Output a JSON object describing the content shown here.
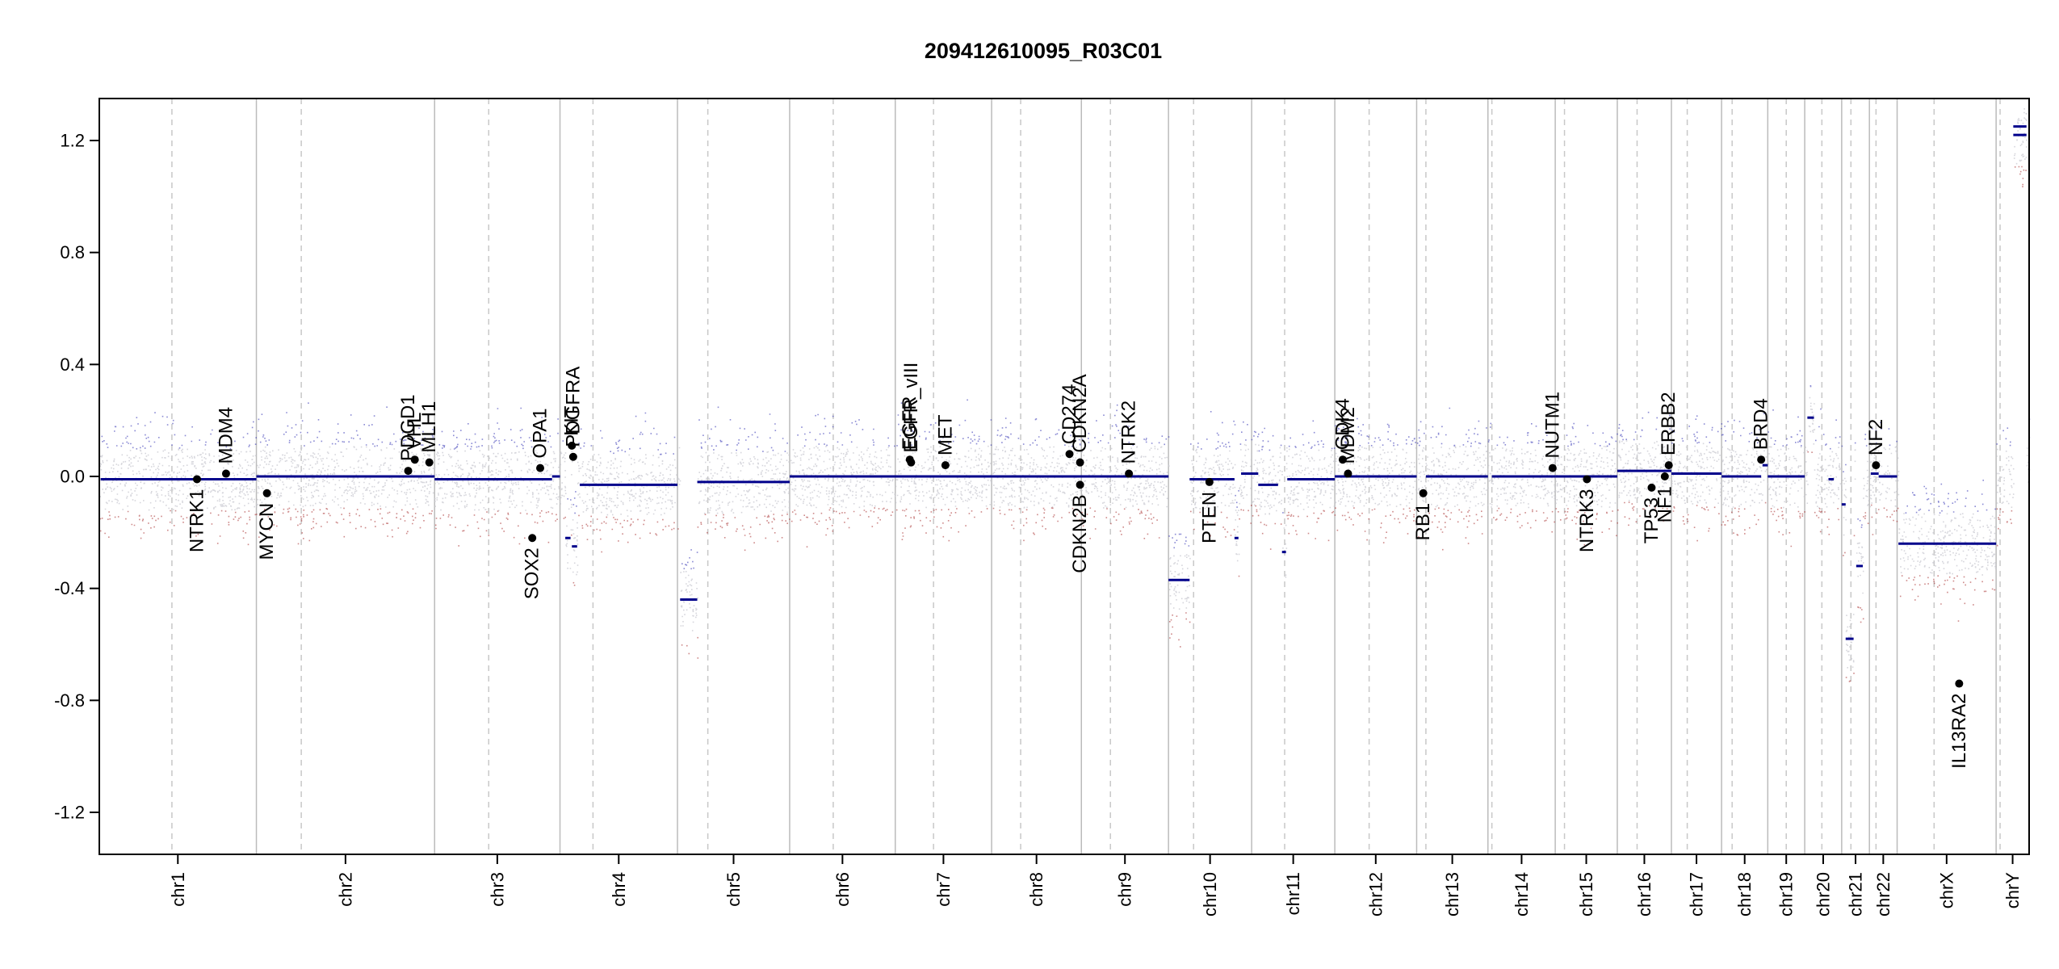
{
  "chart_data": {
    "type": "scatter",
    "title": "209412610095_R03C01",
    "xlabel": "",
    "ylabel": "",
    "ylim": [
      -1.35,
      1.35
    ],
    "yticks": [
      1.2,
      0.8,
      0.4,
      0.0,
      -0.4,
      -0.8,
      -1.2
    ],
    "ytick_labels": [
      "1.2",
      "0.8",
      "0.4",
      "0.0",
      "-0.4",
      "-0.8",
      "-1.2"
    ],
    "colors": {
      "axis": "#000000",
      "segment": "#00008b",
      "gain_point": "#2b2bb0",
      "loss_point": "#a52a2a",
      "neutral_point": "#c8c8d0",
      "chrom_boundary": "#bbbbbb",
      "centromere": "#c8c8c8",
      "gene_marker": "#000000"
    },
    "chromosomes": [
      {
        "name": "chr1",
        "start": 0.0,
        "end": 11.9,
        "centromere": 5.5
      },
      {
        "name": "chr2",
        "start": 11.9,
        "end": 25.4,
        "centromere": 15.3
      },
      {
        "name": "chr3",
        "start": 25.4,
        "end": 34.9,
        "centromere": 29.5
      },
      {
        "name": "chr4",
        "start": 34.9,
        "end": 43.8,
        "centromere": 37.4
      },
      {
        "name": "chr5",
        "start": 43.8,
        "end": 52.3,
        "centromere": 46.1
      },
      {
        "name": "chr6",
        "start": 52.3,
        "end": 60.3,
        "centromere": 55.6
      },
      {
        "name": "chr7",
        "start": 60.3,
        "end": 67.6,
        "centromere": 63.2
      },
      {
        "name": "chr8",
        "start": 67.6,
        "end": 74.4,
        "centromere": 69.8
      },
      {
        "name": "chr9",
        "start": 74.4,
        "end": 81.0,
        "centromere": 76.6
      },
      {
        "name": "chr10",
        "start": 81.0,
        "end": 87.3,
        "centromere": 82.9
      },
      {
        "name": "chr11",
        "start": 87.3,
        "end": 93.6,
        "centromere": 89.8
      },
      {
        "name": "chr12",
        "start": 93.6,
        "end": 99.8,
        "centromere": 96.2
      },
      {
        "name": "chr13",
        "start": 99.8,
        "end": 105.2,
        "centromere": 100.5
      },
      {
        "name": "chr14",
        "start": 105.2,
        "end": 110.3,
        "centromere": 105.5
      },
      {
        "name": "chr15",
        "start": 110.3,
        "end": 115.0,
        "centromere": 111.0
      },
      {
        "name": "chr16",
        "start": 115.0,
        "end": 119.1,
        "centromere": 116.5
      },
      {
        "name": "chr17",
        "start": 119.1,
        "end": 122.9,
        "centromere": 120.3
      },
      {
        "name": "chr18",
        "start": 122.9,
        "end": 126.4,
        "centromere": 123.7
      },
      {
        "name": "chr19",
        "start": 126.4,
        "end": 129.2,
        "centromere": 127.8
      },
      {
        "name": "chr20",
        "start": 129.2,
        "end": 132.0,
        "centromere": 130.5
      },
      {
        "name": "chr21",
        "start": 132.0,
        "end": 134.1,
        "centromere": 132.7
      },
      {
        "name": "chr22",
        "start": 134.1,
        "end": 136.2,
        "centromere": 134.6
      },
      {
        "name": "chrX",
        "start": 136.2,
        "end": 143.7,
        "centromere": 139.0
      },
      {
        "name": "chrY",
        "start": 143.7,
        "end": 146.2,
        "centromere": 144.0
      }
    ],
    "segments": [
      {
        "x0": 0.1,
        "x1": 11.9,
        "y": -0.01
      },
      {
        "x0": 11.9,
        "x1": 25.4,
        "y": 0.0
      },
      {
        "x0": 25.4,
        "x1": 34.3,
        "y": -0.01
      },
      {
        "x0": 34.3,
        "x1": 34.9,
        "y": 0.0
      },
      {
        "x0": 35.3,
        "x1": 35.7,
        "y": -0.22
      },
      {
        "x0": 35.8,
        "x1": 36.2,
        "y": -0.25
      },
      {
        "x0": 36.4,
        "x1": 43.8,
        "y": -0.03
      },
      {
        "x0": 44.0,
        "x1": 45.3,
        "y": -0.44
      },
      {
        "x0": 45.3,
        "x1": 52.3,
        "y": -0.02
      },
      {
        "x0": 52.3,
        "x1": 67.6,
        "y": 0.0
      },
      {
        "x0": 67.6,
        "x1": 81.0,
        "y": 0.0
      },
      {
        "x0": 81.0,
        "x1": 82.6,
        "y": -0.37
      },
      {
        "x0": 82.6,
        "x1": 86.0,
        "y": -0.01
      },
      {
        "x0": 86.0,
        "x1": 86.3,
        "y": -0.22
      },
      {
        "x0": 86.5,
        "x1": 87.8,
        "y": 0.01
      },
      {
        "x0": 87.8,
        "x1": 89.3,
        "y": -0.03
      },
      {
        "x0": 89.6,
        "x1": 89.9,
        "y": -0.27
      },
      {
        "x0": 90.0,
        "x1": 93.6,
        "y": -0.01
      },
      {
        "x0": 93.6,
        "x1": 99.8,
        "y": 0.0
      },
      {
        "x0": 100.5,
        "x1": 105.2,
        "y": 0.0
      },
      {
        "x0": 105.5,
        "x1": 110.3,
        "y": 0.0
      },
      {
        "x0": 110.3,
        "x1": 115.0,
        "y": 0.0
      },
      {
        "x0": 115.0,
        "x1": 119.1,
        "y": 0.02
      },
      {
        "x0": 119.1,
        "x1": 122.9,
        "y": 0.01
      },
      {
        "x0": 122.9,
        "x1": 125.9,
        "y": 0.0
      },
      {
        "x0": 126.0,
        "x1": 126.4,
        "y": 0.04
      },
      {
        "x0": 126.4,
        "x1": 129.2,
        "y": 0.0
      },
      {
        "x0": 129.4,
        "x1": 129.9,
        "y": 0.21
      },
      {
        "x0": 131.0,
        "x1": 131.4,
        "y": -0.01
      },
      {
        "x0": 132.0,
        "x1": 132.3,
        "y": -0.1
      },
      {
        "x0": 132.3,
        "x1": 132.9,
        "y": -0.58
      },
      {
        "x0": 133.1,
        "x1": 133.6,
        "y": -0.32
      },
      {
        "x0": 134.2,
        "x1": 134.8,
        "y": 0.01
      },
      {
        "x0": 134.8,
        "x1": 136.2,
        "y": 0.0
      },
      {
        "x0": 136.3,
        "x1": 143.7,
        "y": -0.24
      },
      {
        "x0": 145.0,
        "x1": 146.0,
        "y": 1.22
      },
      {
        "x0": 145.0,
        "x1": 146.0,
        "y": 1.25
      }
    ],
    "genes": [
      {
        "name": "NTRK1",
        "x": 7.4,
        "y": -0.01,
        "label_side": "below"
      },
      {
        "name": "MDM4",
        "x": 9.6,
        "y": 0.01,
        "label_side": "above"
      },
      {
        "name": "MYCN",
        "x": 12.7,
        "y": -0.06,
        "label_side": "below"
      },
      {
        "name": "PDGD1",
        "x": 23.4,
        "y": 0.02,
        "label_side": "above"
      },
      {
        "name": "VHL",
        "x": 23.9,
        "y": 0.06,
        "label_side": "above"
      },
      {
        "name": "MLH1",
        "x": 25.0,
        "y": 0.05,
        "label_side": "above"
      },
      {
        "name": "SOX2",
        "x": 32.8,
        "y": -0.22,
        "label_side": "below"
      },
      {
        "name": "OPA1",
        "x": 33.4,
        "y": 0.03,
        "label_side": "above"
      },
      {
        "name": "KIT",
        "x": 35.8,
        "y": 0.11,
        "label_side": "above"
      },
      {
        "name": "PDGFRA",
        "x": 35.9,
        "y": 0.07,
        "label_side": "above"
      },
      {
        "name": "EGFR",
        "x": 61.4,
        "y": 0.06,
        "label_side": "above"
      },
      {
        "name": "EGFR_vIII",
        "x": 61.5,
        "y": 0.05,
        "label_side": "above"
      },
      {
        "name": "MET",
        "x": 64.1,
        "y": 0.04,
        "label_side": "above"
      },
      {
        "name": "CD274",
        "x": 73.5,
        "y": 0.08,
        "label_side": "above"
      },
      {
        "name": "CDKN2A",
        "x": 74.3,
        "y": 0.05,
        "label_side": "above"
      },
      {
        "name": "CDKN2B",
        "x": 74.3,
        "y": -0.03,
        "label_side": "below"
      },
      {
        "name": "NTRK2",
        "x": 78.0,
        "y": 0.01,
        "label_side": "above"
      },
      {
        "name": "PTEN",
        "x": 84.1,
        "y": -0.02,
        "label_side": "below"
      },
      {
        "name": "CDK4",
        "x": 94.2,
        "y": 0.06,
        "label_side": "above"
      },
      {
        "name": "MDM2",
        "x": 94.6,
        "y": 0.01,
        "label_side": "above"
      },
      {
        "name": "RB1",
        "x": 100.3,
        "y": -0.06,
        "label_side": "below"
      },
      {
        "name": "NUTM1",
        "x": 110.1,
        "y": 0.03,
        "label_side": "above"
      },
      {
        "name": "NTRK3",
        "x": 112.7,
        "y": -0.01,
        "label_side": "below"
      },
      {
        "name": "TP53",
        "x": 117.6,
        "y": -0.04,
        "label_side": "below"
      },
      {
        "name": "NF1",
        "x": 118.6,
        "y": 0.0,
        "label_side": "below"
      },
      {
        "name": "ERBB2",
        "x": 118.9,
        "y": 0.04,
        "label_side": "above"
      },
      {
        "name": "BRD4",
        "x": 125.9,
        "y": 0.06,
        "label_side": "above"
      },
      {
        "name": "NF2",
        "x": 134.6,
        "y": 0.04,
        "label_side": "above"
      },
      {
        "name": "IL13RA2",
        "x": 140.9,
        "y": -0.74,
        "label_side": "below"
      }
    ]
  }
}
